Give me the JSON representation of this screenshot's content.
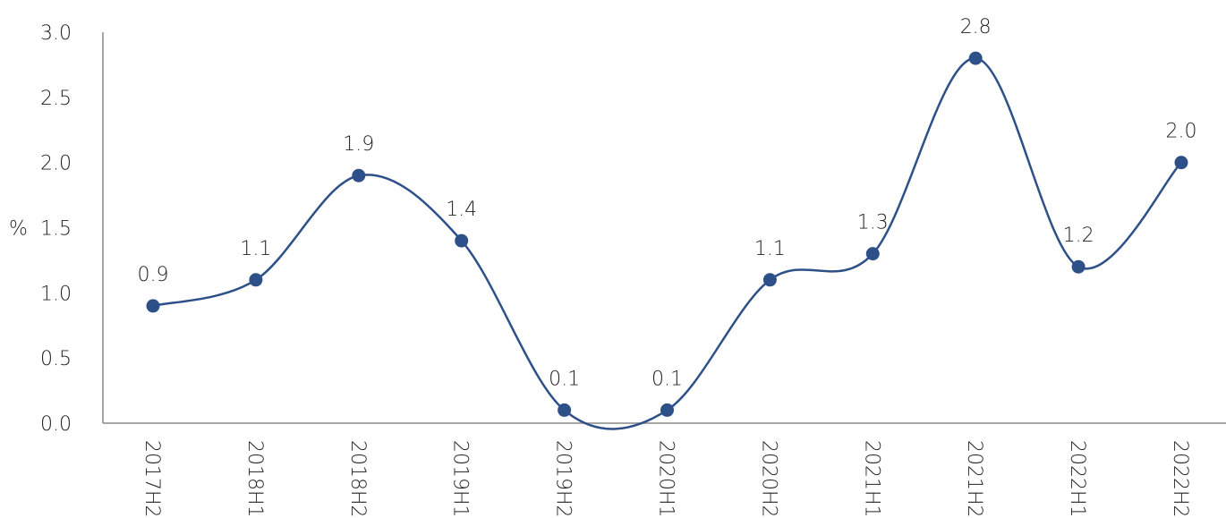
{
  "chart_data": {
    "type": "line",
    "categories": [
      "2017H2",
      "2018H1",
      "2018H2",
      "2019H1",
      "2019H2",
      "2020H1",
      "2020H2",
      "2021H1",
      "2021H2",
      "2022H1",
      "2022H2"
    ],
    "values": [
      0.9,
      1.1,
      1.9,
      1.4,
      0.1,
      0.1,
      1.1,
      1.3,
      2.8,
      1.2,
      2.0
    ],
    "data_labels": [
      "0.9",
      "1.1",
      "1.9",
      "1.4",
      "0.1",
      "0.1",
      "1.1",
      "1.3",
      "2.8",
      "1.2",
      "2.0"
    ],
    "y_ticks": [
      "0.0",
      "0.5",
      "1.0",
      "1.5",
      "2.0",
      "2.5",
      "3.0"
    ],
    "ylim": [
      0,
      3.0
    ],
    "ylabel": "%",
    "title": "",
    "xlabel": "",
    "smooth": true,
    "grid": false,
    "legend": "none",
    "series_color": "#2e5088"
  }
}
